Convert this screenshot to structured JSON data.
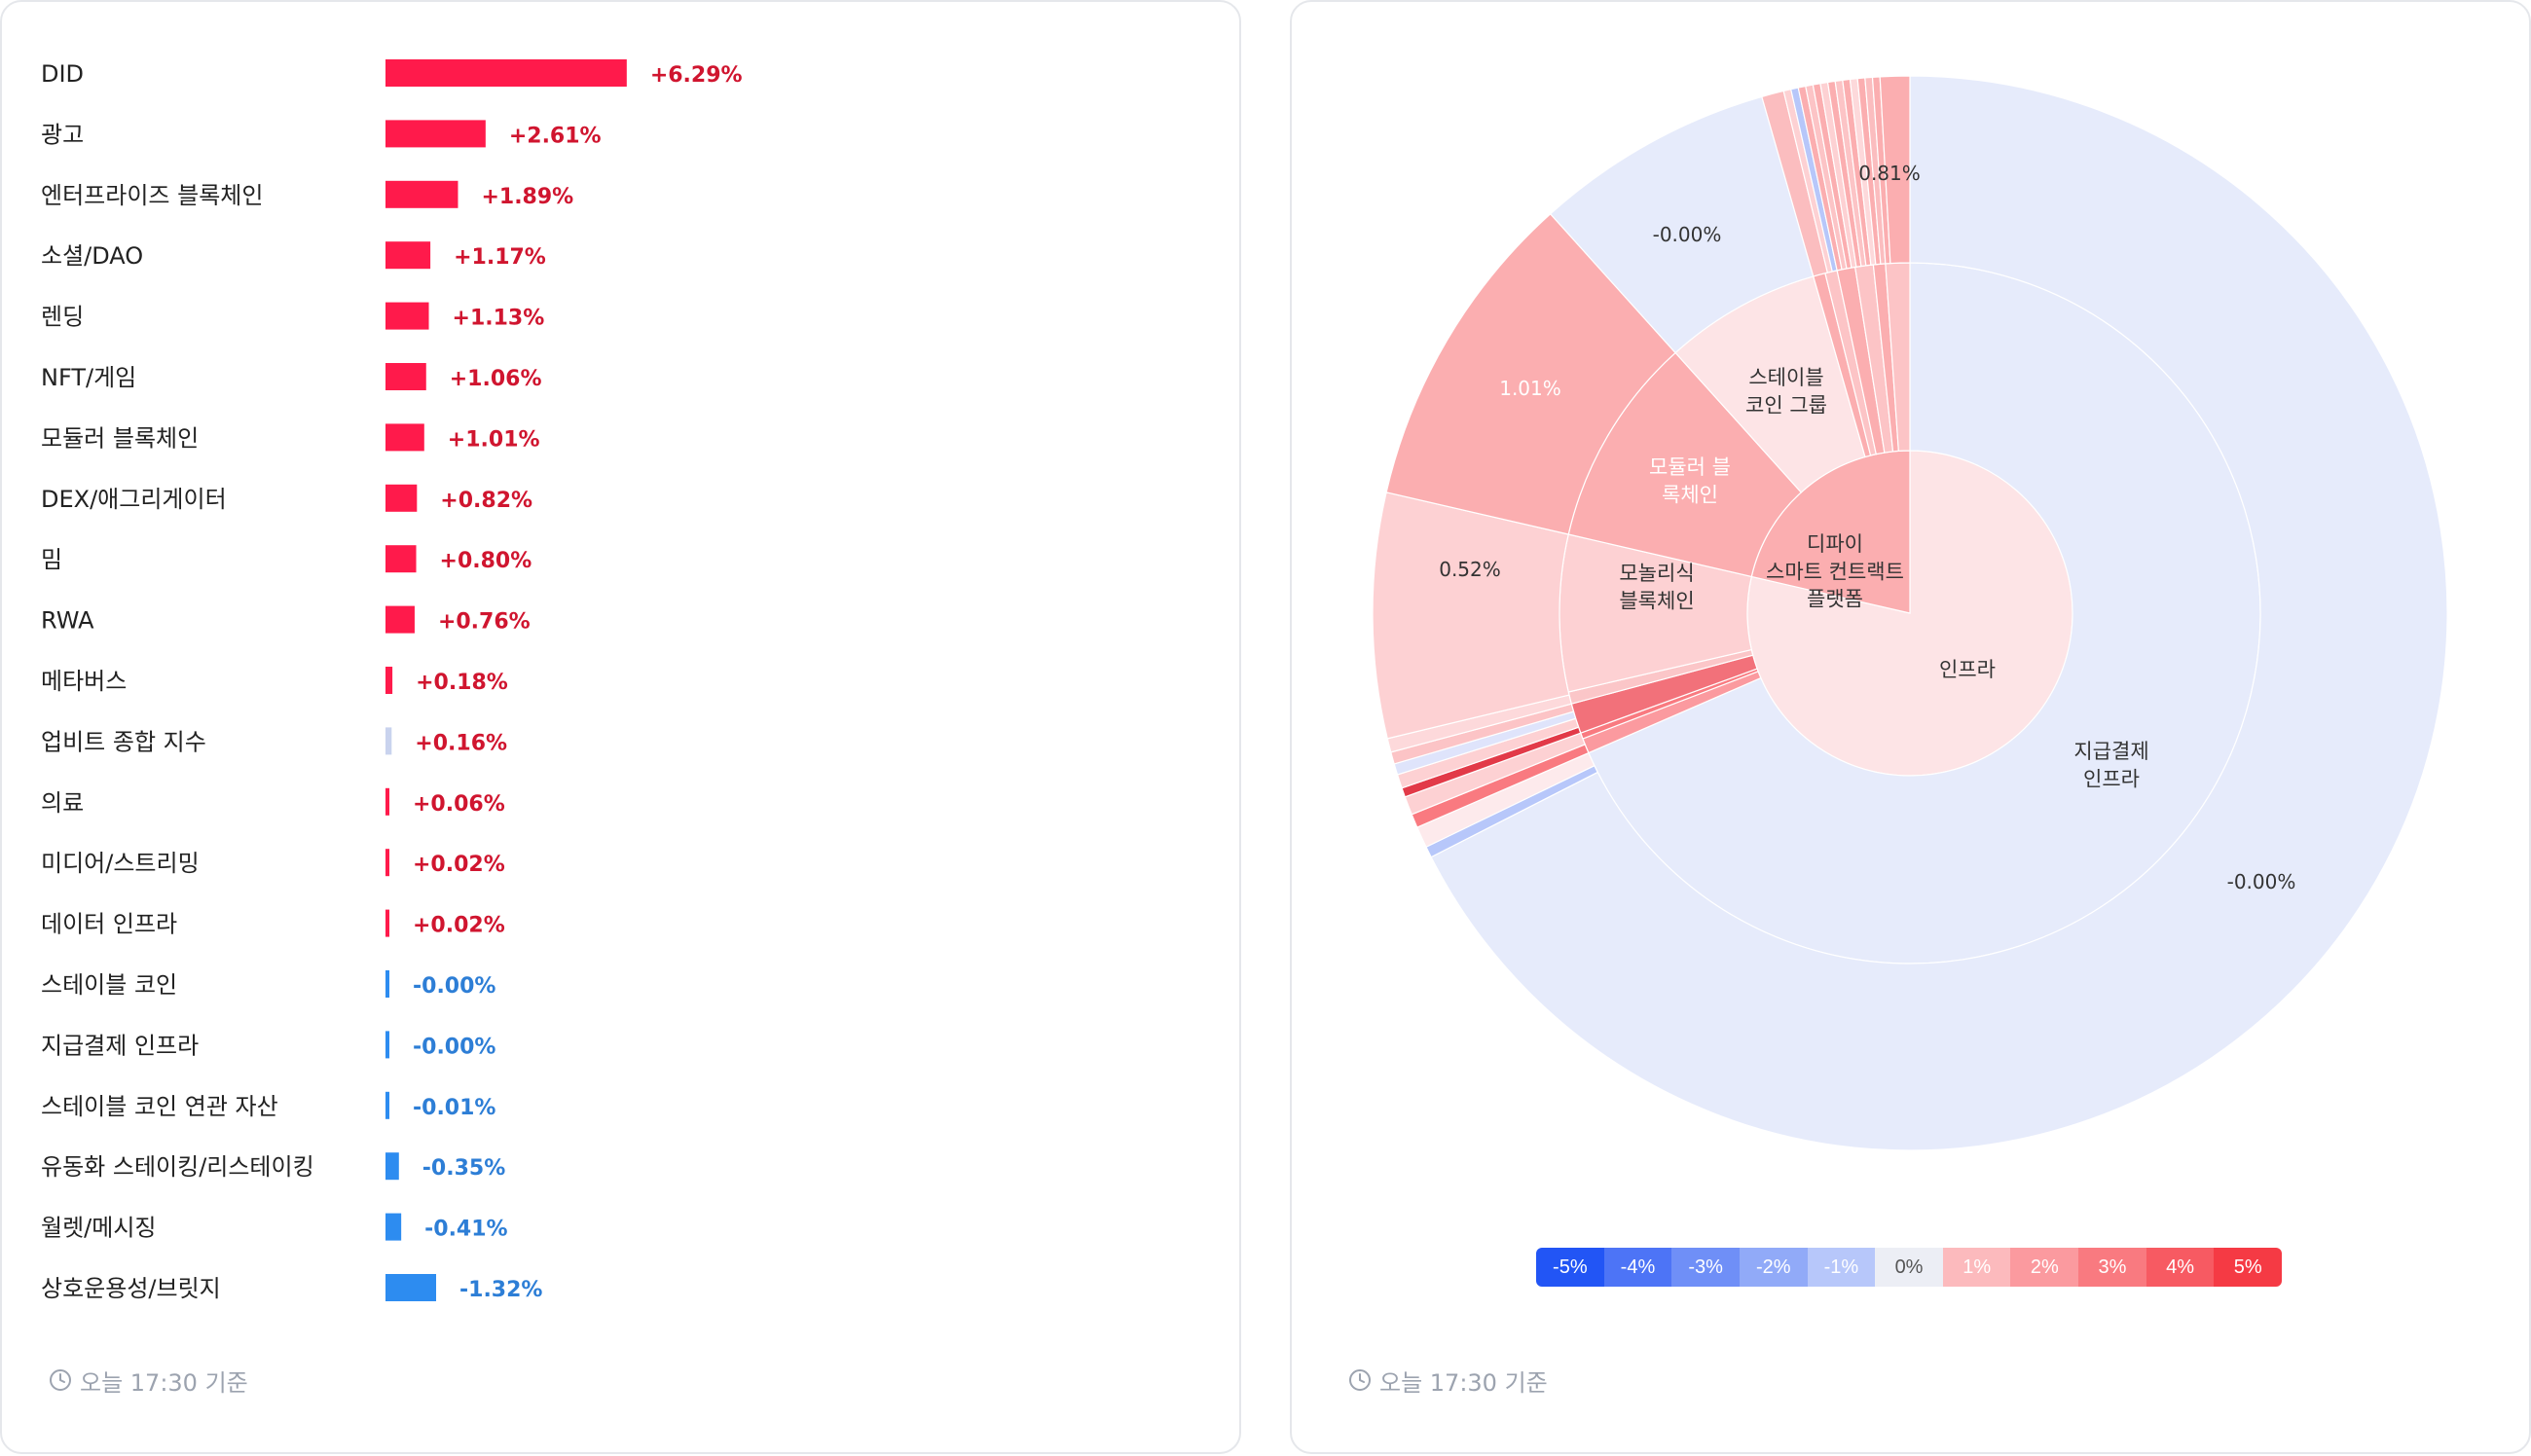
{
  "chart_data": [
    {
      "type": "bar",
      "categories": [
        "DID",
        "광고",
        "엔터프라이즈 블록체인",
        "소셜/DAO",
        "렌딩",
        "NFT/게임",
        "모듈러 블록체인",
        "DEX/애그리게이터",
        "밈",
        "RWA",
        "메타버스",
        "업비트 종합 지수",
        "의료",
        "미디어/스트리밍",
        "데이터 인프라",
        "스테이블 코인",
        "지급결제 인프라",
        "스테이블 코인 연관 자산",
        "유동화 스테이킹/리스테이킹",
        "월렛/메시징",
        "상호운용성/브릿지"
      ],
      "values": [
        6.29,
        2.61,
        1.89,
        1.17,
        1.13,
        1.06,
        1.01,
        0.82,
        0.8,
        0.76,
        0.18,
        0.16,
        0.06,
        0.02,
        0.02,
        -0.0,
        -0.0,
        -0.01,
        -0.35,
        -0.41,
        -1.32
      ],
      "value_labels": [
        "+6.29%",
        "+2.61%",
        "+1.89%",
        "+1.17%",
        "+1.13%",
        "+1.06%",
        "+1.01%",
        "+0.82%",
        "+0.80%",
        "+0.76%",
        "+0.18%",
        "+0.16%",
        "+0.06%",
        "+0.02%",
        "+0.02%",
        "-0.00%",
        "-0.00%",
        "-0.01%",
        "-0.35%",
        "-0.41%",
        "-1.32%"
      ],
      "highlight_category": "업비트 종합 지수",
      "positive_color": "#ff1a4b",
      "negative_color": "#2d8cf0",
      "index_color": "#c9d3ee",
      "positive_label_color": "#d0152f",
      "negative_label_color": "#2d7ed6"
    },
    {
      "type": "pie",
      "subtype": "sunburst",
      "inner": [
        {
          "label": "인프라",
          "color": "#fde4e6"
        },
        {
          "label": "디파이 스마트 컨트랙트 플랫폼",
          "color": "#fbaeb0"
        }
      ],
      "middle": [
        {
          "label": "지급결제 인프라",
          "color": "#e6ebfb"
        },
        {
          "label": "스테이블 코인 그룹",
          "color": "#fde4e6"
        },
        {
          "label": "모듈러 블록체인",
          "color": "#fbaeb0"
        },
        {
          "label": "모놀리식 블록체인",
          "color": "#fdd1d3"
        }
      ],
      "outer_labels": [
        "-0.00%",
        "0.81%",
        "-0.00%",
        "1.01%",
        "0.52%"
      ],
      "color_scale": [
        {
          "label": "-5%",
          "color": "#2255f5"
        },
        {
          "label": "-4%",
          "color": "#4d74f6"
        },
        {
          "label": "-3%",
          "color": "#6f8ff7"
        },
        {
          "label": "-2%",
          "color": "#91aaf8"
        },
        {
          "label": "-1%",
          "color": "#b7c7fa"
        },
        {
          "label": "0%",
          "color": "#eceef5"
        },
        {
          "label": "1%",
          "color": "#fcbabd"
        },
        {
          "label": "2%",
          "color": "#fb9a9f"
        },
        {
          "label": "3%",
          "color": "#f97a80"
        },
        {
          "label": "4%",
          "color": "#f75a62"
        },
        {
          "label": "5%",
          "color": "#f53a44"
        }
      ]
    }
  ],
  "footer": {
    "left_time": "오늘 17:30 기준",
    "right_time": "오늘 17:30 기준"
  }
}
